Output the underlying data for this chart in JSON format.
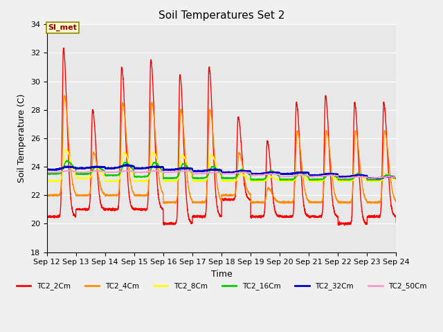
{
  "title": "Soil Temperatures Set 2",
  "xlabel": "Time",
  "ylabel": "Soil Temperature (C)",
  "ylim": [
    18,
    34
  ],
  "x_tick_labels": [
    "Sep 12",
    "Sep 13",
    "Sep 14",
    "Sep 15",
    "Sep 16",
    "Sep 17",
    "Sep 18",
    "Sep 19",
    "Sep 20",
    "Sep 21",
    "Sep 22",
    "Sep 23",
    "Sep 24"
  ],
  "series_colors": {
    "TC2_2Cm": "#FF0000",
    "TC2_4Cm": "#FF8C00",
    "TC2_8Cm": "#FFFF00",
    "TC2_16Cm": "#00CC00",
    "TC2_32Cm": "#0000CC",
    "TC2_50Cm": "#FF99CC"
  },
  "series_linewidths": {
    "TC2_2Cm": 1.0,
    "TC2_4Cm": 1.0,
    "TC2_8Cm": 1.0,
    "TC2_16Cm": 1.0,
    "TC2_32Cm": 1.5,
    "TC2_50Cm": 1.0
  },
  "annotation_text": "SI_met",
  "bg_color": "#E8E8E8",
  "fig_bg_color": "#F0F0F0",
  "title_fontsize": 11,
  "axis_fontsize": 9,
  "tick_fontsize": 8
}
